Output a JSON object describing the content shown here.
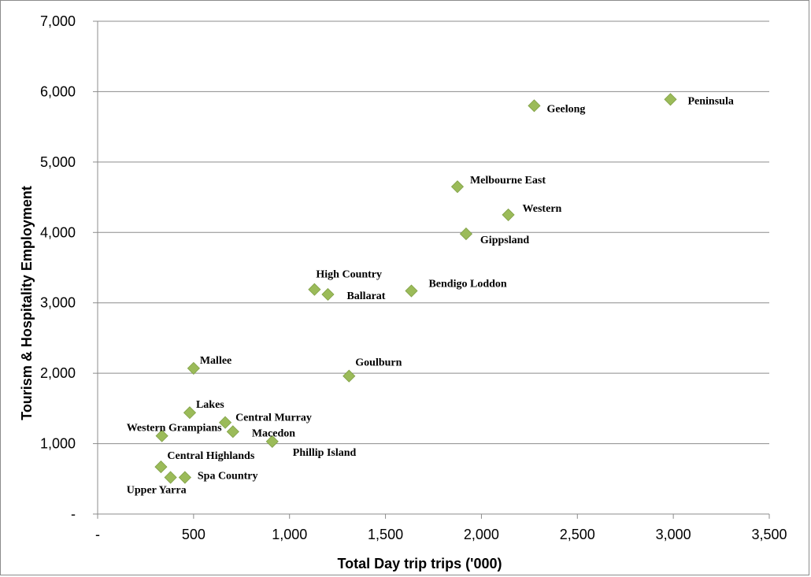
{
  "chart_data": {
    "type": "scatter",
    "xlabel": "Total Day trip trips ('000)",
    "ylabel": "Tourism & Hospitality Employment",
    "xlim": [
      0,
      3500
    ],
    "ylim": [
      0,
      7000
    ],
    "x_ticks": [
      0,
      500,
      1000,
      1500,
      2000,
      2500,
      3000,
      3500
    ],
    "x_tick_labels": [
      "-",
      "500",
      "1,000",
      "1,500",
      "2,000",
      "2,500",
      "3,000",
      "3,500"
    ],
    "y_ticks": [
      0,
      1000,
      2000,
      3000,
      4000,
      5000,
      6000,
      7000
    ],
    "y_tick_labels": [
      "-",
      "1,000",
      "2,000",
      "3,000",
      "4,000",
      "5,000",
      "6,000",
      "7,000"
    ],
    "grid": "horizontal",
    "marker_color": "#9bbb59",
    "points": [
      {
        "label": "Peninsula",
        "x": 2985,
        "y": 5890
      },
      {
        "label": "Geelong",
        "x": 2275,
        "y": 5800
      },
      {
        "label": "Melbourne East",
        "x": 1875,
        "y": 4650
      },
      {
        "label": "Western",
        "x": 2140,
        "y": 4250
      },
      {
        "label": "Gippsland",
        "x": 1920,
        "y": 3980
      },
      {
        "label": "Bendigo Loddon",
        "x": 1635,
        "y": 3170
      },
      {
        "label": "High Country",
        "x": 1130,
        "y": 3190
      },
      {
        "label": "Ballarat",
        "x": 1200,
        "y": 3120
      },
      {
        "label": "Goulburn",
        "x": 1310,
        "y": 1960
      },
      {
        "label": "Mallee",
        "x": 500,
        "y": 2070
      },
      {
        "label": "Lakes",
        "x": 480,
        "y": 1440
      },
      {
        "label": "Central Murray",
        "x": 665,
        "y": 1300
      },
      {
        "label": "Macedon",
        "x": 705,
        "y": 1170
      },
      {
        "label": "Western Grampians",
        "x": 335,
        "y": 1110
      },
      {
        "label": "Phillip Island",
        "x": 910,
        "y": 1030
      },
      {
        "label": "Central Highlands",
        "x": 330,
        "y": 670
      },
      {
        "label": "Spa Country",
        "x": 455,
        "y": 520
      },
      {
        "label": "Upper Yarra",
        "x": 380,
        "y": 520
      }
    ]
  }
}
